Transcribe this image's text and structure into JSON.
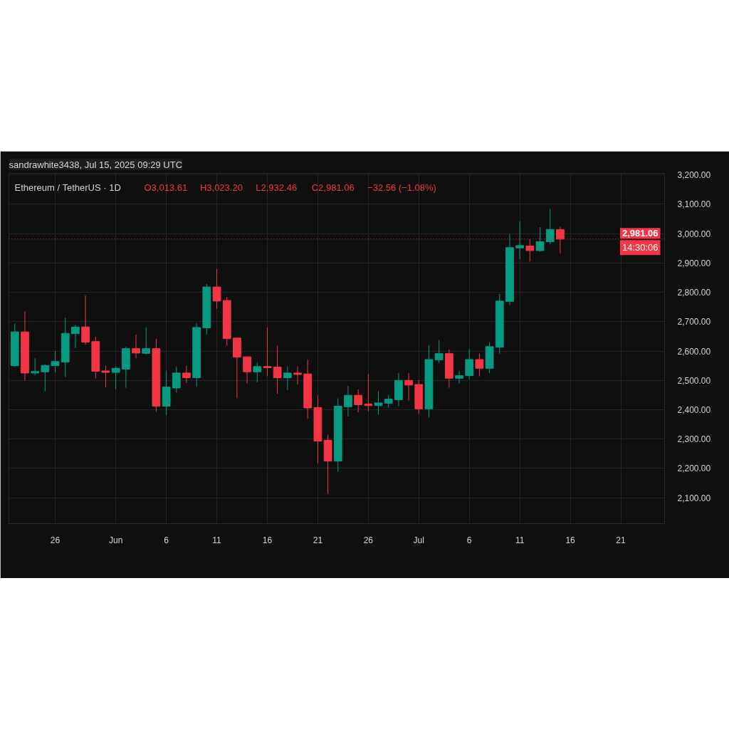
{
  "chart_data": {
    "type": "candlestick",
    "title": "sandrawhite3438, Jul 15, 2025 09:29 UTC",
    "subtitle": "Ethereum / TetherUS · 1D",
    "x": [
      "2025-05-22",
      "2025-05-23",
      "2025-05-24",
      "2025-05-25",
      "2025-05-26",
      "2025-05-27",
      "2025-05-28",
      "2025-05-29",
      "2025-05-30",
      "2025-05-31",
      "2025-06-01",
      "2025-06-02",
      "2025-06-03",
      "2025-06-04",
      "2025-06-05",
      "2025-06-06",
      "2025-06-07",
      "2025-06-08",
      "2025-06-09",
      "2025-06-10",
      "2025-06-11",
      "2025-06-12",
      "2025-06-13",
      "2025-06-14",
      "2025-06-15",
      "2025-06-16",
      "2025-06-17",
      "2025-06-18",
      "2025-06-19",
      "2025-06-20",
      "2025-06-21",
      "2025-06-22",
      "2025-06-23",
      "2025-06-24",
      "2025-06-25",
      "2025-06-26",
      "2025-06-27",
      "2025-06-28",
      "2025-06-29",
      "2025-06-30",
      "2025-07-01",
      "2025-07-02",
      "2025-07-03",
      "2025-07-04",
      "2025-07-05",
      "2025-07-06",
      "2025-07-07",
      "2025-07-08",
      "2025-07-09",
      "2025-07-10",
      "2025-07-11",
      "2025-07-12",
      "2025-07-13",
      "2025-07-14",
      "2025-07-15"
    ],
    "ohlc": [
      [
        2550,
        2693,
        2546,
        2665
      ],
      [
        2665,
        2735,
        2498,
        2525
      ],
      [
        2525,
        2575,
        2517,
        2530
      ],
      [
        2529,
        2554,
        2463,
        2551
      ],
      [
        2550,
        2600,
        2527,
        2564
      ],
      [
        2562,
        2714,
        2512,
        2660
      ],
      [
        2659,
        2689,
        2610,
        2681
      ],
      [
        2682,
        2789,
        2621,
        2630
      ],
      [
        2632,
        2649,
        2507,
        2531
      ],
      [
        2532,
        2550,
        2476,
        2527
      ],
      [
        2527,
        2548,
        2469,
        2541
      ],
      [
        2538,
        2614,
        2475,
        2608
      ],
      [
        2608,
        2656,
        2575,
        2593
      ],
      [
        2592,
        2681,
        2586,
        2608
      ],
      [
        2608,
        2642,
        2393,
        2412
      ],
      [
        2412,
        2533,
        2382,
        2477
      ],
      [
        2474,
        2546,
        2459,
        2525
      ],
      [
        2525,
        2550,
        2491,
        2509
      ],
      [
        2509,
        2695,
        2478,
        2680
      ],
      [
        2679,
        2828,
        2656,
        2818
      ],
      [
        2818,
        2879,
        2744,
        2770
      ],
      [
        2772,
        2784,
        2618,
        2642
      ],
      [
        2644,
        2646,
        2439,
        2579
      ],
      [
        2580,
        2581,
        2489,
        2529
      ],
      [
        2529,
        2560,
        2493,
        2547
      ],
      [
        2547,
        2681,
        2514,
        2543
      ],
      [
        2545,
        2618,
        2454,
        2509
      ],
      [
        2509,
        2548,
        2467,
        2525
      ],
      [
        2525,
        2548,
        2486,
        2520
      ],
      [
        2522,
        2570,
        2369,
        2406
      ],
      [
        2407,
        2449,
        2217,
        2293
      ],
      [
        2296,
        2315,
        2113,
        2225
      ],
      [
        2225,
        2439,
        2188,
        2412
      ],
      [
        2410,
        2481,
        2377,
        2449
      ],
      [
        2449,
        2469,
        2391,
        2417
      ],
      [
        2419,
        2522,
        2394,
        2414
      ],
      [
        2414,
        2463,
        2383,
        2423
      ],
      [
        2422,
        2449,
        2407,
        2436
      ],
      [
        2434,
        2525,
        2412,
        2500
      ],
      [
        2500,
        2525,
        2431,
        2484
      ],
      [
        2486,
        2501,
        2386,
        2403
      ],
      [
        2403,
        2620,
        2374,
        2571
      ],
      [
        2570,
        2637,
        2558,
        2591
      ],
      [
        2591,
        2605,
        2475,
        2507
      ],
      [
        2507,
        2532,
        2489,
        2516
      ],
      [
        2516,
        2606,
        2503,
        2571
      ],
      [
        2571,
        2591,
        2514,
        2541
      ],
      [
        2541,
        2630,
        2524,
        2615
      ],
      [
        2613,
        2795,
        2591,
        2770
      ],
      [
        2769,
        2999,
        2756,
        2952
      ],
      [
        2951,
        3041,
        2913,
        2959
      ],
      [
        2958,
        2980,
        2905,
        2942
      ],
      [
        2942,
        3022,
        2938,
        2972
      ],
      [
        2972,
        3084,
        2964,
        3014
      ],
      [
        3013.61,
        3023.2,
        2932.46,
        2981.06
      ]
    ],
    "colors": [
      "#089981",
      "#f23645",
      "#089981",
      "#089981",
      "#089981",
      "#089981",
      "#089981",
      "#f23645",
      "#f23645",
      "#f23645",
      "#089981",
      "#089981",
      "#f23645",
      "#089981",
      "#f23645",
      "#089981",
      "#089981",
      "#f23645",
      "#089981",
      "#089981",
      "#f23645",
      "#f23645",
      "#f23645",
      "#f23645",
      "#089981",
      "#f23645",
      "#f23645",
      "#089981",
      "#f23645",
      "#f23645",
      "#f23645",
      "#f23645",
      "#089981",
      "#089981",
      "#f23645",
      "#f23645",
      "#089981",
      "#089981",
      "#089981",
      "#f23645",
      "#f23645",
      "#089981",
      "#089981",
      "#f23645",
      "#089981",
      "#089981",
      "#f23645",
      "#089981",
      "#089981",
      "#089981",
      "#089981",
      "#f23645",
      "#089981",
      "#089981",
      "#f23645"
    ],
    "xlim": [
      "2025-05-21T10:00",
      "2025-07-25T08:00"
    ],
    "xticks": [
      {
        "value": "2025-05-26",
        "label": "26"
      },
      {
        "value": "2025-06-01",
        "label": "Jun"
      },
      {
        "value": "2025-06-06",
        "label": "6"
      },
      {
        "value": "2025-06-11",
        "label": "11"
      },
      {
        "value": "2025-06-16",
        "label": "16"
      },
      {
        "value": "2025-06-21",
        "label": "21"
      },
      {
        "value": "2025-06-26",
        "label": "26"
      },
      {
        "value": "2025-07-01",
        "label": "Jul"
      },
      {
        "value": "2025-07-06",
        "label": "6"
      },
      {
        "value": "2025-07-11",
        "label": "11"
      },
      {
        "value": "2025-07-16",
        "label": "16"
      },
      {
        "value": "2025-07-21",
        "label": "21"
      }
    ],
    "ylim": [
      2012,
      3205
    ],
    "yticks": [
      {
        "value": 2100,
        "label": "2,100.00"
      },
      {
        "value": 2200,
        "label": "2,200.00"
      },
      {
        "value": 2300,
        "label": "2,300.00"
      },
      {
        "value": 2400,
        "label": "2,400.00"
      },
      {
        "value": 2500,
        "label": "2,500.00"
      },
      {
        "value": 2600,
        "label": "2,600.00"
      },
      {
        "value": 2700,
        "label": "2,700.00"
      },
      {
        "value": 2800,
        "label": "2,800.00"
      },
      {
        "value": 2900,
        "label": "2,900.00"
      },
      {
        "value": 3000,
        "label": "3,000.00"
      },
      {
        "value": 3100,
        "label": "3,100.00"
      },
      {
        "value": 3200,
        "label": "3,200.00"
      }
    ],
    "grid": true,
    "ref_lines": [
      {
        "axis": "y",
        "value": 2981.06,
        "label": "2,981.06",
        "color": "#f23645",
        "line_style": "dotted"
      }
    ],
    "annotations": [
      "O3,013.61",
      "H3,023.20",
      "L2,932.46",
      "C2,981.06",
      "−32.56 (−1.08%)",
      "14:30:06"
    ]
  }
}
